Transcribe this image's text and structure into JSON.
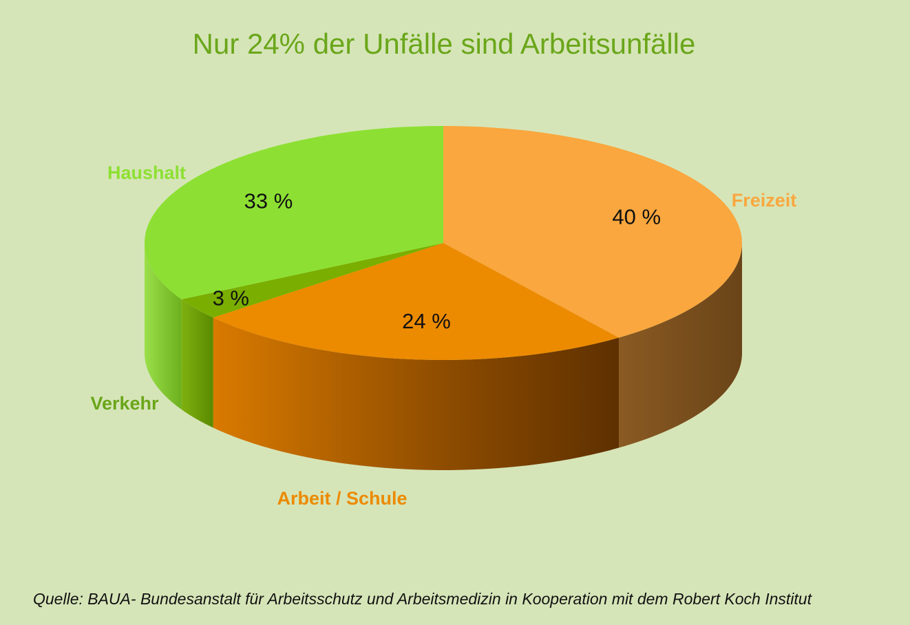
{
  "chart_data": {
    "type": "pie",
    "style": "3d",
    "title": "Nur 24% der Unfälle sind Arbeitsunfälle",
    "slices": [
      {
        "label": "Freizeit",
        "value": 40,
        "value_label": "40 %",
        "color": "#f9a73e",
        "label_color": "#f9a73e"
      },
      {
        "label": "Arbeit / Schule",
        "value": 24,
        "value_label": "24 %",
        "color": "#ec8a00",
        "label_color": "#ec8a00"
      },
      {
        "label": "Verkehr",
        "value": 3,
        "value_label": "3 %",
        "color": "#7aae00",
        "label_color": "#6aa61a"
      },
      {
        "label": "Haushalt",
        "value": 33,
        "value_label": "33 %",
        "color": "#8de033",
        "label_color": "#8de033"
      }
    ],
    "start": "12 o'clock",
    "direction": "clockwise",
    "legend": "none"
  },
  "source": "Quelle: BAUA- Bundesanstalt für Arbeitsschutz und Arbeitsmedizin in Kooperation mit dem Robert Koch Institut",
  "background_color": "#d6e5b8"
}
